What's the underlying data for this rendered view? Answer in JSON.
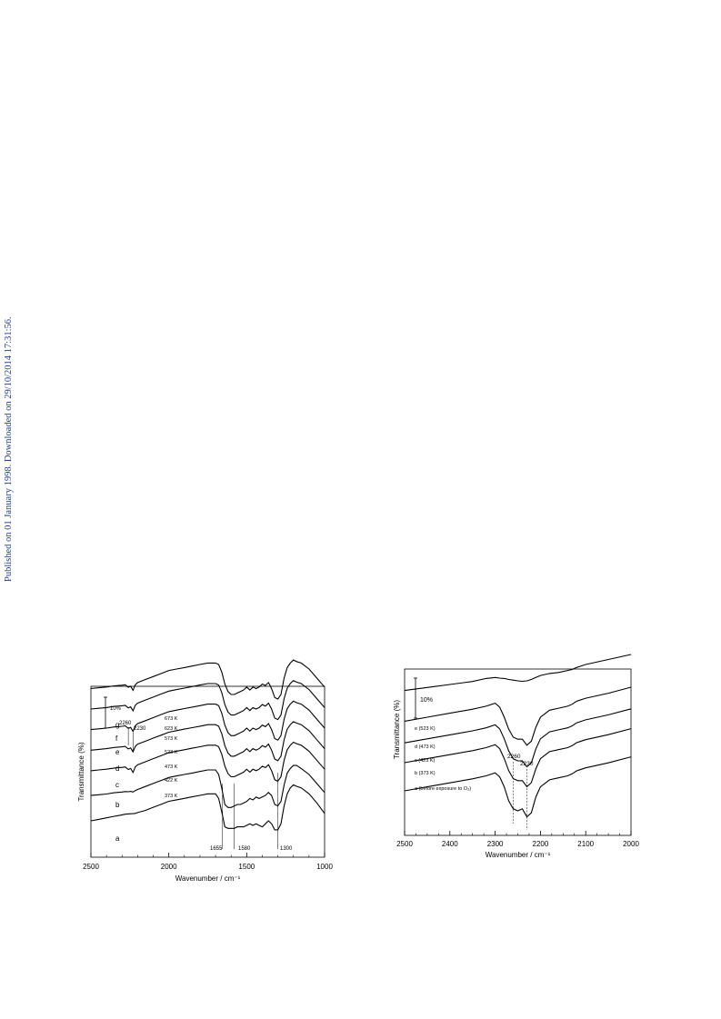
{
  "side_note": "Published on 01 January 1998. Downloaded on 29/10/2014 17:31:56.",
  "chart_data": [
    {
      "type": "line",
      "xlabel": "Wavenumber / cm⁻¹",
      "ylabel": "Transmittance (%)",
      "xlim": [
        2500,
        1000
      ],
      "x_ticks": [
        "2500",
        "2000",
        "1500",
        "1000"
      ],
      "scale_bar_label": "10%",
      "grid": false,
      "series_labels": [
        "a",
        "b",
        "c",
        "d",
        "e",
        "f",
        "g"
      ],
      "temperatures": [
        "373 K",
        "422 K",
        "473 K",
        "523 K",
        "573 K",
        "623 K",
        "673 K"
      ],
      "annotations": [
        "2260",
        "2230",
        "1655",
        "1580",
        "1300"
      ],
      "x": [
        2500,
        2450,
        2400,
        2350,
        2300,
        2280,
        2260,
        2245,
        2230,
        2215,
        2200,
        2150,
        2100,
        2050,
        2000,
        1950,
        1900,
        1850,
        1800,
        1750,
        1700,
        1680,
        1660,
        1640,
        1620,
        1600,
        1580,
        1560,
        1540,
        1520,
        1500,
        1480,
        1460,
        1440,
        1420,
        1400,
        1380,
        1360,
        1340,
        1320,
        1300,
        1280,
        1260,
        1240,
        1220,
        1200,
        1180,
        1150,
        1100,
        1050,
        1000
      ],
      "series": [
        {
          "label": "a",
          "values": [
            0,
            1,
            2,
            3,
            4,
            4.4,
            4.6,
            4.7,
            4.8,
            5,
            5.5,
            7,
            9,
            11,
            13,
            14,
            15,
            16,
            17,
            18,
            18,
            15,
            6,
            -4,
            -5,
            -5,
            -5,
            -4,
            -4,
            -4,
            -3,
            -2,
            -3,
            -2,
            -3,
            -4,
            -2,
            0,
            -2,
            -6,
            -6,
            -2,
            10,
            18,
            22,
            24,
            23,
            22,
            18,
            12,
            5
          ]
        },
        {
          "label": "b",
          "values": [
            6,
            6.5,
            7,
            7.8,
            8.3,
            8.6,
            8.5,
            8.7,
            8.3,
            9.3,
            10,
            12,
            14,
            16,
            18,
            19,
            20,
            21,
            22,
            23,
            23,
            20,
            11,
            0,
            -2,
            -2,
            -1,
            0,
            0,
            1,
            2,
            4,
            3,
            5,
            4,
            5,
            6,
            8,
            6,
            0,
            -1,
            2,
            13,
            21,
            24,
            26,
            26,
            24,
            20,
            14,
            8
          ]
        },
        {
          "label": "c",
          "values": [
            11,
            11.5,
            12,
            12.8,
            13.2,
            13.5,
            11.8,
            12.5,
            9.8,
            13.5,
            15,
            17,
            19,
            21,
            23,
            24,
            25,
            26,
            27,
            28,
            28,
            27,
            22,
            14,
            9,
            7,
            7,
            8,
            9,
            10,
            12,
            10,
            12,
            11,
            12,
            14,
            13,
            15,
            11,
            5,
            4,
            7,
            18,
            25,
            28,
            30,
            29,
            28,
            24,
            18,
            12
          ]
        },
        {
          "label": "d",
          "values": [
            15,
            15.5,
            16,
            16.8,
            17.2,
            17.5,
            15.8,
            16.5,
            13.8,
            17.5,
            19,
            21,
            23,
            25,
            27,
            28,
            29,
            30,
            31,
            32,
            32,
            31,
            26,
            18,
            13,
            11,
            11,
            12,
            13,
            14,
            16,
            14,
            16,
            15,
            16,
            18,
            17,
            19,
            15,
            9,
            8,
            11,
            22,
            29,
            32,
            34,
            33,
            32,
            28,
            22,
            16
          ]
        },
        {
          "label": "e",
          "values": [
            19,
            19.5,
            20,
            20.8,
            21.2,
            21.5,
            19.8,
            20.5,
            17.8,
            21.5,
            23,
            25,
            27,
            29,
            31,
            32,
            33,
            34,
            35,
            36,
            36,
            35,
            30,
            22,
            17,
            15,
            15,
            16,
            17,
            18,
            20,
            18,
            20,
            19,
            20,
            22,
            21,
            23,
            19,
            13,
            12,
            15,
            26,
            33,
            36,
            38,
            37,
            36,
            32,
            26,
            20
          ]
        },
        {
          "label": "f",
          "values": [
            23,
            23.5,
            24,
            24.8,
            25.2,
            25.5,
            23.8,
            24.5,
            21.8,
            25.5,
            27,
            29,
            31,
            33,
            35,
            36,
            37,
            38,
            39,
            40,
            40,
            39,
            34,
            26,
            21,
            19,
            19,
            20,
            21,
            22,
            24,
            22,
            24,
            23,
            24,
            26,
            25,
            27,
            23,
            17,
            16,
            19,
            30,
            37,
            40,
            42,
            41,
            40,
            36,
            30,
            24
          ]
        },
        {
          "label": "g",
          "values": [
            27,
            27.5,
            28,
            28.8,
            29.2,
            29.5,
            27.8,
            28.5,
            25.8,
            29.5,
            31,
            33,
            35,
            37,
            39,
            40,
            41,
            42,
            43,
            44,
            44,
            43,
            38,
            30,
            25,
            23,
            23,
            24,
            25,
            26,
            28,
            26,
            28,
            27,
            28,
            30,
            29,
            31,
            27,
            21,
            20,
            23,
            34,
            41,
            44,
            46,
            45,
            44,
            40,
            34,
            28
          ]
        }
      ]
    },
    {
      "type": "line",
      "xlabel": "Wavenumber / cm⁻¹",
      "ylabel": "Transmittance (%)",
      "xlim": [
        2500,
        2000
      ],
      "x_ticks": [
        "2500",
        "2400",
        "2300",
        "2200",
        "2100",
        "2000"
      ],
      "scale_bar_label": "10%",
      "grid": false,
      "annotations": [
        "2260",
        "2230"
      ],
      "x": [
        2500,
        2450,
        2400,
        2350,
        2320,
        2300,
        2290,
        2280,
        2270,
        2260,
        2250,
        2240,
        2230,
        2220,
        2210,
        2200,
        2180,
        2160,
        2140,
        2130,
        2120,
        2100,
        2050,
        2000
      ],
      "series": [
        {
          "label": "a (before exposure to O₂)",
          "values": [
            0,
            2,
            4,
            6,
            7.5,
            9,
            7,
            2,
            -5,
            -9,
            -10,
            -9,
            -13,
            -11,
            -3,
            2,
            5.5,
            6.5,
            7.5,
            8.5,
            10,
            11.5,
            14,
            17
          ]
        },
        {
          "label": "b (373 K)",
          "values": [
            5,
            7,
            9,
            11,
            12.5,
            14,
            12,
            7,
            1,
            -3,
            -4,
            -4,
            -7,
            -5,
            2,
            7,
            10.5,
            11.5,
            12.5,
            13.5,
            15,
            16.5,
            19,
            22
          ]
        },
        {
          "label": "c (423 K)",
          "values": [
            9,
            11,
            13,
            15,
            16.5,
            18,
            16,
            11,
            5,
            1,
            0,
            0,
            -3,
            -1,
            6,
            11,
            14.5,
            15.5,
            16.5,
            17.5,
            19,
            20.5,
            23,
            26
          ]
        },
        {
          "label": "d (473 K)",
          "values": [
            13,
            15,
            17,
            19,
            20.5,
            22,
            20,
            15,
            9,
            5,
            4,
            4,
            1,
            3,
            10,
            15,
            18.5,
            19.5,
            20.5,
            21.5,
            23,
            24.5,
            27,
            30
          ]
        },
        {
          "label": "e (523 K)",
          "values": [
            22,
            23.5,
            25,
            26.5,
            28,
            28.5,
            28.2,
            28,
            27.5,
            27.2,
            26.8,
            26.6,
            26.8,
            27.5,
            28.5,
            29.5,
            30.5,
            31,
            32,
            32.5,
            33.5,
            35,
            37.5,
            40
          ]
        }
      ]
    }
  ]
}
